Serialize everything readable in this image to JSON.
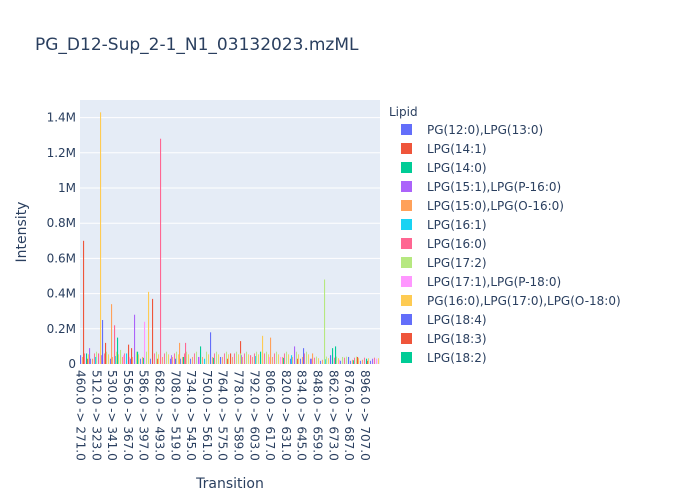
{
  "chart_data": {
    "type": "bar",
    "title": "PG_D12-Sup_2-1_N1_03132023.mzML",
    "xlabel": "Transition",
    "ylabel": "Intensity",
    "ylim": [
      0,
      1500000
    ],
    "yticks": [
      0,
      200000,
      400000,
      600000,
      800000,
      1000000,
      1200000,
      1400000
    ],
    "ytick_labels": [
      "0",
      "0.2M",
      "0.4M",
      "0.6M",
      "0.8M",
      "1M",
      "1.2M",
      "1.4M"
    ],
    "xtick_labels": [
      "460.0 -> 271.0",
      "512.0 -> 323.0",
      "530.0 -> 341.0",
      "556.0 -> 367.0",
      "586.0 -> 397.0",
      "682.0 -> 493.0",
      "708.0 -> 519.0",
      "734.0 -> 545.0",
      "750.0 -> 561.0",
      "764.0 -> 575.0",
      "778.0 -> 589.0",
      "792.0 -> 603.0",
      "806.0 -> 617.0",
      "820.0 -> 631.0",
      "834.0 -> 645.0",
      "848.0 -> 659.0",
      "862.0 -> 673.0",
      "876.0 -> 687.0",
      "896.0 -> 707.0"
    ],
    "grid": true,
    "legend_title": "Lipid",
    "legend_position": "right",
    "series": [
      {
        "name": "PG(12:0),LPG(13:0)",
        "color": "#636efa",
        "bars": [
          {
            "slot": 0,
            "value": 50000
          },
          {
            "slot": 22,
            "value": 250000
          },
          {
            "slot": 95,
            "value": 30000
          },
          {
            "slot": 140,
            "value": 40000
          },
          {
            "slot": 250,
            "value": 50000
          }
        ]
      },
      {
        "name": "LPG(14:1)",
        "color": "#ef553b",
        "bars": [
          {
            "slot": 3,
            "value": 700000
          },
          {
            "slot": 25,
            "value": 120000
          },
          {
            "slot": 48,
            "value": 110000
          },
          {
            "slot": 72,
            "value": 370000
          },
          {
            "slot": 160,
            "value": 130000
          }
        ]
      },
      {
        "name": "LPG(14:0)",
        "color": "#00cc96",
        "bars": [
          {
            "slot": 6,
            "value": 60000
          },
          {
            "slot": 37,
            "value": 150000
          },
          {
            "slot": 120,
            "value": 100000
          },
          {
            "slot": 180,
            "value": 70000
          },
          {
            "slot": 252,
            "value": 90000
          }
        ]
      },
      {
        "name": "LPG(15:1),LPG(P-16:0)",
        "color": "#ab63fa",
        "bars": [
          {
            "slot": 9,
            "value": 90000
          },
          {
            "slot": 54,
            "value": 280000
          },
          {
            "slot": 118,
            "value": 40000
          },
          {
            "slot": 214,
            "value": 100000
          },
          {
            "slot": 292,
            "value": 30000
          }
        ]
      },
      {
        "name": "LPG(15:0),LPG(O-16:0)",
        "color": "#ffa15a",
        "bars": [
          {
            "slot": 12,
            "value": 30000
          },
          {
            "slot": 31,
            "value": 340000
          },
          {
            "slot": 99,
            "value": 120000
          },
          {
            "slot": 190,
            "value": 150000
          },
          {
            "slot": 232,
            "value": 60000
          }
        ]
      },
      {
        "name": "LPG(16:1)",
        "color": "#19d3f3",
        "bars": [
          {
            "slot": 15,
            "value": 40000
          },
          {
            "slot": 46,
            "value": 60000
          },
          {
            "slot": 124,
            "value": 30000
          },
          {
            "slot": 211,
            "value": 50000
          }
        ]
      },
      {
        "name": "LPG(16:0)",
        "color": "#ff6692",
        "bars": [
          {
            "slot": 18,
            "value": 60000
          },
          {
            "slot": 34,
            "value": 220000
          },
          {
            "slot": 80,
            "value": 1280000
          },
          {
            "slot": 105,
            "value": 120000
          },
          {
            "slot": 170,
            "value": 50000
          }
        ]
      },
      {
        "name": "LPG(17:2)",
        "color": "#b6e880",
        "bars": [
          {
            "slot": 40,
            "value": 80000
          },
          {
            "slot": 160,
            "value": 60000
          },
          {
            "slot": 244,
            "value": 480000
          },
          {
            "slot": 262,
            "value": 40000
          }
        ]
      },
      {
        "name": "LPG(17:1),LPG(P-18:0)",
        "color": "#ff97ff",
        "bars": [
          {
            "slot": 43,
            "value": 50000
          },
          {
            "slot": 64,
            "value": 240000
          },
          {
            "slot": 200,
            "value": 40000
          },
          {
            "slot": 296,
            "value": 30000
          }
        ]
      },
      {
        "name": "PG(16:0),LPG(17:0),LPG(O-18:0)",
        "color": "#fecb52",
        "bars": [
          {
            "slot": 20,
            "value": 1430000
          },
          {
            "slot": 68,
            "value": 410000
          },
          {
            "slot": 182,
            "value": 160000
          }
        ]
      },
      {
        "name": "LPG(18:4)",
        "color": "#636efa",
        "bars": [
          {
            "slot": 130,
            "value": 180000
          },
          {
            "slot": 223,
            "value": 90000
          },
          {
            "slot": 268,
            "value": 40000
          }
        ]
      },
      {
        "name": "LPG(18:3)",
        "color": "#ef553b",
        "bars": [
          {
            "slot": 51,
            "value": 90000
          },
          {
            "slot": 150,
            "value": 60000
          },
          {
            "slot": 277,
            "value": 40000
          }
        ]
      },
      {
        "name": "LPG(18:2)",
        "color": "#00cc96",
        "bars": [
          {
            "slot": 57,
            "value": 70000
          },
          {
            "slot": 103,
            "value": 40000
          },
          {
            "slot": 255,
            "value": 100000
          },
          {
            "slot": 286,
            "value": 30000
          }
        ]
      }
    ],
    "background_bars": [
      {
        "value": 30000,
        "color": "#636efa"
      },
      {
        "value": 50000,
        "color": "#ab63fa"
      },
      {
        "value": 40000,
        "color": "#ffa15a"
      },
      {
        "value": 35000,
        "color": "#00cc96"
      },
      {
        "value": 60000,
        "color": "#ff6692"
      },
      {
        "value": 45000,
        "color": "#19d3f3"
      },
      {
        "value": 70000,
        "color": "#b6e880"
      },
      {
        "value": 30000,
        "color": "#ef553b"
      },
      {
        "value": 55000,
        "color": "#fecb52"
      },
      {
        "value": 40000,
        "color": "#ff97ff"
      }
    ]
  }
}
